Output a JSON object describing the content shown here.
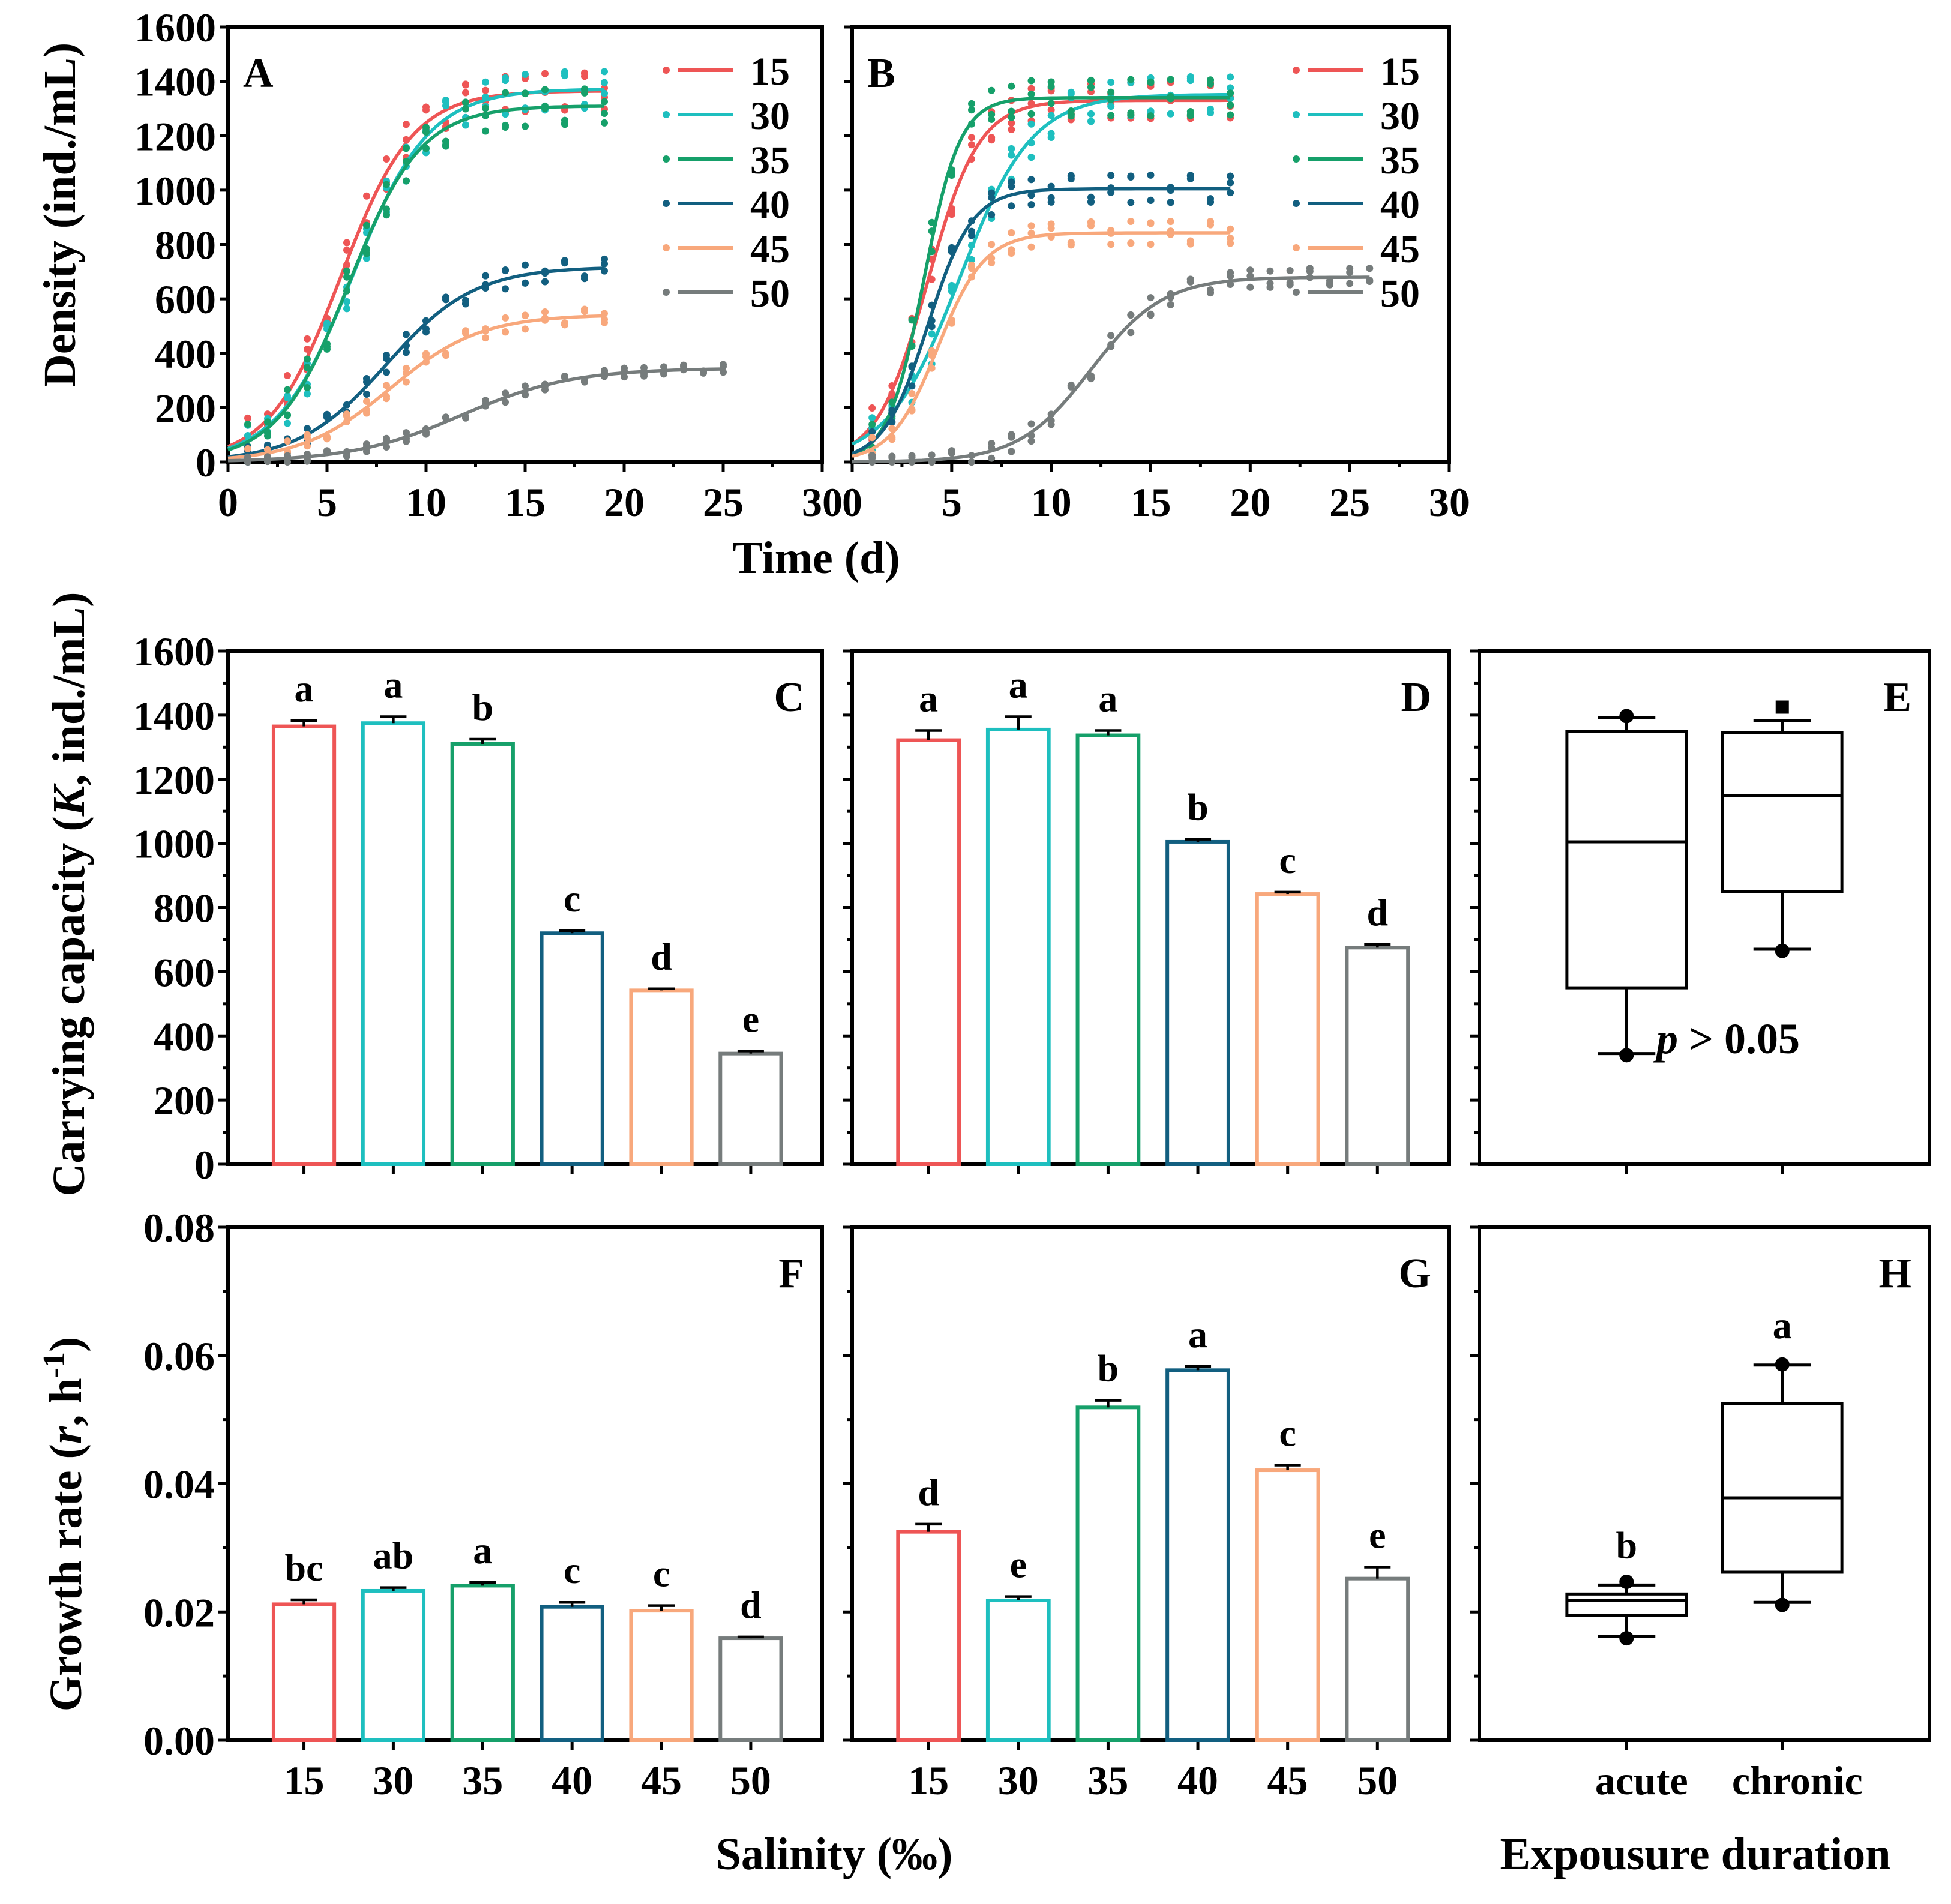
{
  "series_colors": {
    "15": "#ee5555",
    "30": "#1ebfbf",
    "35": "#16a06a",
    "40": "#125f80",
    "45": "#f8a87c",
    "50": "#767c7c"
  },
  "axes_text": {
    "density_ylabel": "Density (ind./mL)",
    "time_xlabel": "Time (d)",
    "carrying_ylabel_pre": "Carrying capacity (",
    "carrying_ylabel_k": "K",
    "carrying_ylabel_post": ", ind./mL)",
    "growth_ylabel_pre": "Growth rate (",
    "growth_ylabel_r": "r",
    "growth_ylabel_post": ", h",
    "growth_ylabel_sup": "-1",
    "growth_ylabel_close": ")",
    "salinity_xlabel": "Salinity (‰)",
    "exposure_xlabel": "Expousure duration",
    "p_label_p": "p",
    "p_label_rest": " > 0.05"
  },
  "chart_data": [
    {
      "panel": "A",
      "type": "scatter",
      "title": "",
      "xlabel": "Time (d)",
      "ylabel": "Density (ind./mL)",
      "xlim": [
        0,
        30
      ],
      "ylim": [
        0,
        1600
      ],
      "xticks": [
        "0",
        "5",
        "10",
        "15",
        "20",
        "25",
        "30"
      ],
      "yticks": [
        "0",
        "200",
        "400",
        "600",
        "800",
        "1000",
        "1200",
        "1400",
        "1600"
      ],
      "legend": [
        "15",
        "30",
        "35",
        "40",
        "45",
        "50"
      ],
      "fit": "logistic",
      "series": [
        {
          "name": "15",
          "K": 1365,
          "x0": 5.7,
          "k": 0.55,
          "xmax": 19
        },
        {
          "name": "30",
          "K": 1372,
          "x0": 6.3,
          "k": 0.52,
          "xmax": 19
        },
        {
          "name": "35",
          "K": 1310,
          "x0": 6.1,
          "k": 0.55,
          "xmax": 19
        },
        {
          "name": "40",
          "K": 718,
          "x0": 8.0,
          "k": 0.45,
          "xmax": 19
        },
        {
          "name": "45",
          "K": 542,
          "x0": 8.2,
          "k": 0.44,
          "xmax": 19
        },
        {
          "name": "50",
          "K": 345,
          "x0": 11.8,
          "k": 0.36,
          "xmax": 25
        }
      ]
    },
    {
      "panel": "B",
      "type": "scatter",
      "title": "",
      "xlabel": "Time (d)",
      "ylabel": "",
      "xlim": [
        0,
        30
      ],
      "ylim": [
        0,
        1600
      ],
      "xticks": [
        "0",
        "5",
        "10",
        "15",
        "20",
        "25",
        "30"
      ],
      "yticks": [],
      "legend": [
        "15",
        "30",
        "35",
        "40",
        "45",
        "50"
      ],
      "fit": "logistic",
      "series": [
        {
          "name": "15",
          "K": 1330,
          "x0": 3.8,
          "k": 0.78,
          "xmax": 19
        },
        {
          "name": "30",
          "K": 1352,
          "x0": 5.4,
          "k": 0.55,
          "xmax": 19
        },
        {
          "name": "35",
          "K": 1340,
          "x0": 3.6,
          "k": 1.1,
          "xmax": 19
        },
        {
          "name": "40",
          "K": 1005,
          "x0": 3.8,
          "k": 0.9,
          "xmax": 19
        },
        {
          "name": "45",
          "K": 843,
          "x0": 4.3,
          "k": 0.85,
          "xmax": 19
        },
        {
          "name": "50",
          "K": 680,
          "x0": 12.0,
          "k": 0.55,
          "xmax": 26
        }
      ]
    },
    {
      "panel": "C",
      "type": "bar",
      "ylabel": "Carrying capacity (K, ind./mL)",
      "ylim": [
        0,
        1600
      ],
      "yticks": [
        "0",
        "200",
        "400",
        "600",
        "800",
        "1000",
        "1200",
        "1400",
        "1600"
      ],
      "categories": [
        "15",
        "30",
        "35",
        "40",
        "45",
        "50"
      ],
      "values": [
        1365,
        1375,
        1310,
        720,
        542,
        345
      ],
      "errors": [
        18,
        20,
        15,
        8,
        5,
        8
      ],
      "letters": [
        "a",
        "a",
        "b",
        "c",
        "d",
        "e"
      ]
    },
    {
      "panel": "D",
      "type": "bar",
      "ylim": [
        0,
        1600
      ],
      "categories": [
        "15",
        "30",
        "35",
        "40",
        "45",
        "50"
      ],
      "values": [
        1322,
        1355,
        1337,
        1005,
        842,
        675
      ],
      "errors": [
        30,
        40,
        15,
        8,
        6,
        10
      ],
      "letters": [
        "a",
        "a",
        "a",
        "b",
        "c",
        "d"
      ]
    },
    {
      "panel": "E",
      "type": "box",
      "ylim": [
        0,
        1600
      ],
      "categories": [
        "acute",
        "chronic"
      ],
      "boxes": [
        {
          "name": "acute",
          "whisker_low": 345,
          "q1": 550,
          "median": 1005,
          "q3": 1350,
          "whisker_high": 1392,
          "min_point": 340,
          "max_point": 1397
        },
        {
          "name": "chronic",
          "whisker_low": 670,
          "q1": 850,
          "median": 1150,
          "q3": 1345,
          "whisker_high": 1382,
          "min_point": 665,
          "max_point": 1425
        }
      ],
      "annotation": "p > 0.05"
    },
    {
      "panel": "F",
      "type": "bar",
      "xlabel": "Salinity (‰)",
      "ylabel": "Growth rate (r, h-1)",
      "ylim": [
        0,
        0.08
      ],
      "yticks": [
        "0.00",
        "0.02",
        "0.04",
        "0.06",
        "0.08"
      ],
      "categories": [
        "15",
        "30",
        "35",
        "40",
        "45",
        "50"
      ],
      "values": [
        0.0212,
        0.0233,
        0.0241,
        0.0208,
        0.0202,
        0.0159
      ],
      "errors": [
        0.0007,
        0.0005,
        0.0005,
        0.0007,
        0.0008,
        0.0002
      ],
      "letters": [
        "bc",
        "ab",
        "a",
        "c",
        "c",
        "d"
      ]
    },
    {
      "panel": "G",
      "type": "bar",
      "xlabel": "Salinity (‰)",
      "ylim": [
        0,
        0.08
      ],
      "categories": [
        "15",
        "30",
        "35",
        "40",
        "45",
        "50"
      ],
      "values": [
        0.0325,
        0.0218,
        0.0519,
        0.0577,
        0.0421,
        0.0252
      ],
      "errors": [
        0.0012,
        0.0006,
        0.0011,
        0.0006,
        0.0008,
        0.0018
      ],
      "letters": [
        "d",
        "e",
        "b",
        "a",
        "c",
        "e"
      ]
    },
    {
      "panel": "H",
      "type": "box",
      "xlabel": "Expousure duration",
      "ylim": [
        0,
        0.08
      ],
      "categories": [
        "acute",
        "chronic"
      ],
      "boxes": [
        {
          "name": "acute",
          "whisker_low": 0.0162,
          "q1": 0.0195,
          "median": 0.0218,
          "q3": 0.0228,
          "whisker_high": 0.0242,
          "min_point": 0.0159,
          "max_point": 0.0247
        },
        {
          "name": "chronic",
          "whisker_low": 0.0215,
          "q1": 0.0262,
          "median": 0.0378,
          "q3": 0.0525,
          "whisker_high": 0.0585,
          "min_point": 0.0211,
          "max_point": 0.0586
        }
      ],
      "letters": [
        "b",
        "a"
      ]
    }
  ]
}
